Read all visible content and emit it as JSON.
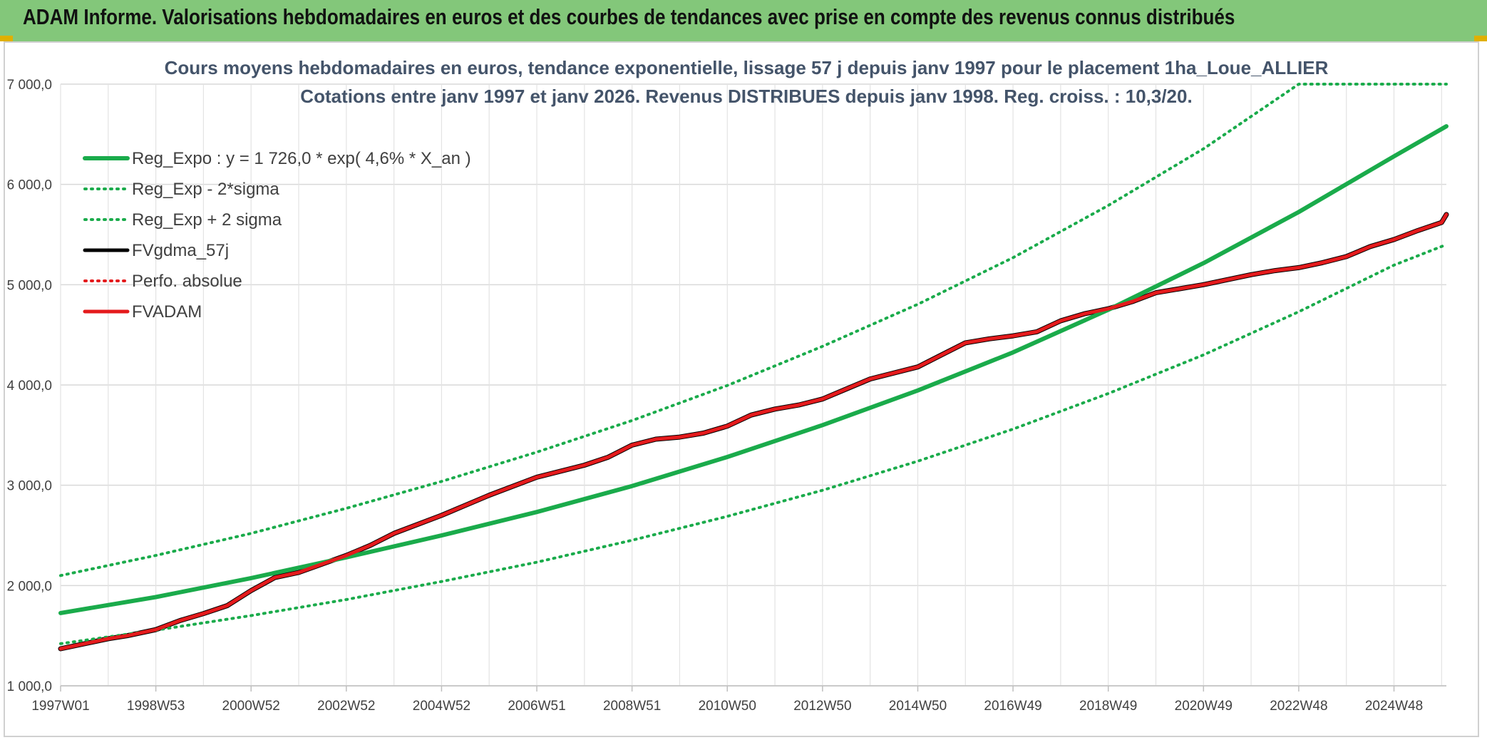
{
  "banner": {
    "title": "ADAM Informe. Valorisations hebdomadaires en euros et des courbes de tendances avec prise en compte des revenus connus distribués"
  },
  "chart_data": {
    "type": "line",
    "title": "Cours moyens hebdomadaires en euros, tendance exponentielle, lissage 57 j depuis janv 1997 pour le placement 1ha_Loue_ALLIER",
    "subtitle": "Cotations entre janv 1997 et janv 2026. Revenus DISTRIBUES depuis janv 1998. Reg. croiss. : 10,3/20.",
    "xlabel": "",
    "ylabel": "",
    "x_range": [
      1997.0,
      2026.1
    ],
    "ylim": [
      1000,
      7000
    ],
    "y_ticks": [
      1000,
      2000,
      3000,
      4000,
      5000,
      6000,
      7000
    ],
    "y_tick_labels": [
      "1 000,0",
      "2 000,0",
      "3 000,0",
      "4 000,0",
      "5 000,0",
      "6 000,0",
      "7 000,0"
    ],
    "x_ticks": [
      1997.0,
      1999.0,
      2001.0,
      2003.0,
      2005.0,
      2007.0,
      2009.0,
      2011.0,
      2013.0,
      2015.0,
      2017.0,
      2019.0,
      2021.0,
      2023.0,
      2025.0
    ],
    "x_tick_labels": [
      "1997W01",
      "1998W53",
      "2000W52",
      "2002W52",
      "2004W52",
      "2006W51",
      "2008W51",
      "2010W50",
      "2012W50",
      "2014W50",
      "2016W49",
      "2018W49",
      "2020W49",
      "2022W48",
      "2024W48"
    ],
    "grid": true,
    "legend_position": "top-left",
    "series": [
      {
        "name": "Reg_Expo : y = 1 726,0 * exp( 4,6% *  X_an )",
        "color": "#1aab4b",
        "style": "solid",
        "x": [
          1997,
          1999,
          2001,
          2003,
          2005,
          2007,
          2009,
          2011,
          2013,
          2015,
          2017,
          2019,
          2021,
          2023,
          2025,
          2026.1
        ],
        "values": [
          1726,
          1885,
          2074,
          2281,
          2499,
          2733,
          2992,
          3282,
          3600,
          3945,
          4325,
          4750,
          5215,
          5725,
          6280,
          6580
        ]
      },
      {
        "name": "Reg_Exp - 2*sigma",
        "color": "#1aab4b",
        "style": "dotted",
        "x": [
          1997,
          1999,
          2001,
          2003,
          2005,
          2007,
          2009,
          2011,
          2013,
          2015,
          2017,
          2019,
          2021,
          2023,
          2025,
          2026.1
        ],
        "values": [
          1420,
          1555,
          1700,
          1860,
          2040,
          2233,
          2452,
          2690,
          2950,
          3240,
          3560,
          3915,
          4300,
          4730,
          5195,
          5400
        ]
      },
      {
        "name": "Reg_Exp + 2 sigma",
        "color": "#1aab4b",
        "style": "dotted",
        "x": [
          1997,
          1999,
          2001,
          2003,
          2005,
          2007,
          2009,
          2011,
          2013,
          2015,
          2017,
          2019,
          2021,
          2023,
          2025,
          2026.1
        ],
        "values": [
          2100,
          2300,
          2520,
          2770,
          3038,
          3330,
          3645,
          3995,
          4385,
          4805,
          5270,
          5790,
          6355,
          7000,
          7000,
          7000
        ]
      },
      {
        "name": "FVgdma_57j",
        "color": "#000000",
        "style": "solid",
        "x": [
          1997.0,
          1998.0,
          1998.4,
          1999.0,
          1999.5,
          2000.0,
          2000.5,
          2001.0,
          2001.5,
          2002.0,
          2003.0,
          2003.5,
          2004.0,
          2005.0,
          2005.5,
          2006.0,
          2007.0,
          2008.0,
          2008.5,
          2009.0,
          2009.5,
          2010.0,
          2010.5,
          2011.0,
          2011.5,
          2012.0,
          2012.5,
          2013.0,
          2013.5,
          2014.0,
          2015.0,
          2015.5,
          2016.0,
          2016.5,
          2017.0,
          2017.5,
          2018.0,
          2018.5,
          2019.0,
          2019.5,
          2020.0,
          2020.5,
          2021.0,
          2021.5,
          2022.0,
          2022.5,
          2023.0,
          2023.5,
          2024.0,
          2024.5,
          2025.0,
          2025.5,
          2026.0,
          2026.1
        ],
        "values": [
          1370,
          1470,
          1500,
          1560,
          1650,
          1720,
          1800,
          1950,
          2080,
          2130,
          2300,
          2400,
          2520,
          2700,
          2800,
          2900,
          3080,
          3200,
          3280,
          3400,
          3460,
          3480,
          3520,
          3590,
          3700,
          3760,
          3800,
          3860,
          3960,
          4060,
          4180,
          4300,
          4420,
          4460,
          4490,
          4530,
          4640,
          4710,
          4760,
          4830,
          4920,
          4960,
          5000,
          5050,
          5100,
          5140,
          5170,
          5220,
          5280,
          5380,
          5450,
          5540,
          5620,
          5700
        ]
      },
      {
        "name": "Perfo. absolue",
        "color": "#e41a1c",
        "style": "dotted",
        "x": [
          1997.0,
          1998.0,
          1998.4,
          1999.0,
          1999.5,
          2000.0,
          2000.5,
          2001.0,
          2001.5,
          2002.0,
          2003.0,
          2003.5,
          2004.0,
          2005.0,
          2005.5,
          2006.0,
          2007.0,
          2008.0,
          2008.5,
          2009.0,
          2009.5,
          2010.0,
          2010.5,
          2011.0,
          2011.5,
          2012.0,
          2012.5,
          2013.0,
          2013.5,
          2014.0,
          2015.0,
          2015.5,
          2016.0,
          2016.5,
          2017.0,
          2017.5,
          2018.0,
          2018.5,
          2019.0,
          2019.5,
          2020.0,
          2020.5,
          2021.0,
          2021.5,
          2022.0,
          2022.5,
          2023.0,
          2023.5,
          2024.0,
          2024.5,
          2025.0,
          2025.5,
          2026.0,
          2026.1
        ],
        "values": [
          1370,
          1470,
          1500,
          1560,
          1650,
          1720,
          1800,
          1950,
          2080,
          2130,
          2300,
          2400,
          2520,
          2700,
          2800,
          2900,
          3080,
          3200,
          3280,
          3400,
          3460,
          3480,
          3520,
          3590,
          3700,
          3760,
          3800,
          3860,
          3960,
          4060,
          4180,
          4300,
          4420,
          4460,
          4490,
          4530,
          4640,
          4710,
          4760,
          4830,
          4920,
          4960,
          5000,
          5050,
          5100,
          5140,
          5170,
          5220,
          5280,
          5380,
          5450,
          5540,
          5620,
          5700
        ]
      },
      {
        "name": "FVADAM",
        "color": "#e41a1c",
        "style": "solid",
        "x": [
          1997.0,
          1998.0,
          1998.4,
          1999.0,
          1999.5,
          2000.0,
          2000.5,
          2001.0,
          2001.5,
          2002.0,
          2003.0,
          2003.5,
          2004.0,
          2005.0,
          2005.5,
          2006.0,
          2007.0,
          2008.0,
          2008.5,
          2009.0,
          2009.5,
          2010.0,
          2010.5,
          2011.0,
          2011.5,
          2012.0,
          2012.5,
          2013.0,
          2013.5,
          2014.0,
          2015.0,
          2015.5,
          2016.0,
          2016.5,
          2017.0,
          2017.5,
          2018.0,
          2018.5,
          2019.0,
          2019.5,
          2020.0,
          2020.5,
          2021.0,
          2021.5,
          2022.0,
          2022.5,
          2023.0,
          2023.5,
          2024.0,
          2024.5,
          2025.0,
          2025.5,
          2026.0,
          2026.1
        ],
        "values": [
          1370,
          1470,
          1500,
          1560,
          1650,
          1720,
          1800,
          1950,
          2080,
          2130,
          2300,
          2400,
          2520,
          2700,
          2800,
          2900,
          3080,
          3200,
          3280,
          3400,
          3460,
          3480,
          3520,
          3590,
          3700,
          3760,
          3800,
          3860,
          3960,
          4060,
          4180,
          4300,
          4420,
          4460,
          4490,
          4530,
          4640,
          4710,
          4760,
          4830,
          4920,
          4960,
          5000,
          5050,
          5100,
          5140,
          5170,
          5220,
          5280,
          5380,
          5450,
          5540,
          5620,
          5700
        ]
      }
    ]
  }
}
